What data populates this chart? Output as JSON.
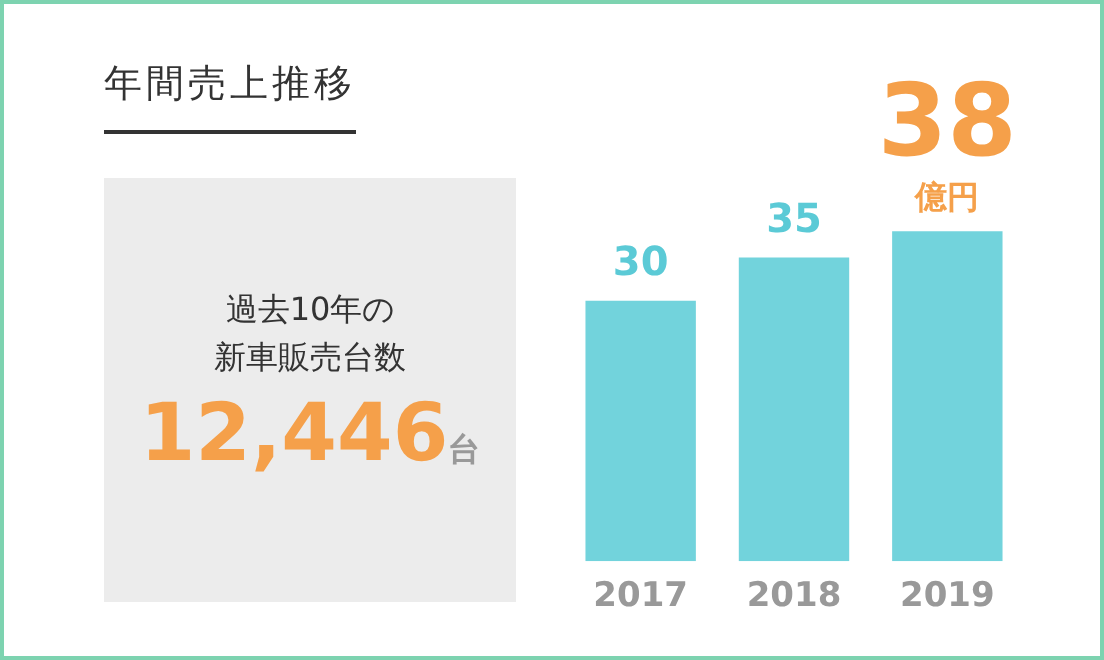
{
  "chart_data": {
    "type": "bar",
    "title": "年間売上推移",
    "categories": [
      "2017",
      "2018",
      "2019"
    ],
    "values": [
      30,
      35,
      38
    ],
    "color": "#72d3dc",
    "data_labels": true,
    "tick_labels": "x",
    "grid": false,
    "legend": false,
    "annotations": [
      "過去10年の",
      "新車販売台数",
      "12,446",
      "台",
      {
        "text": "億円",
        "x": "2019",
        "y": 38
      }
    ]
  }
}
